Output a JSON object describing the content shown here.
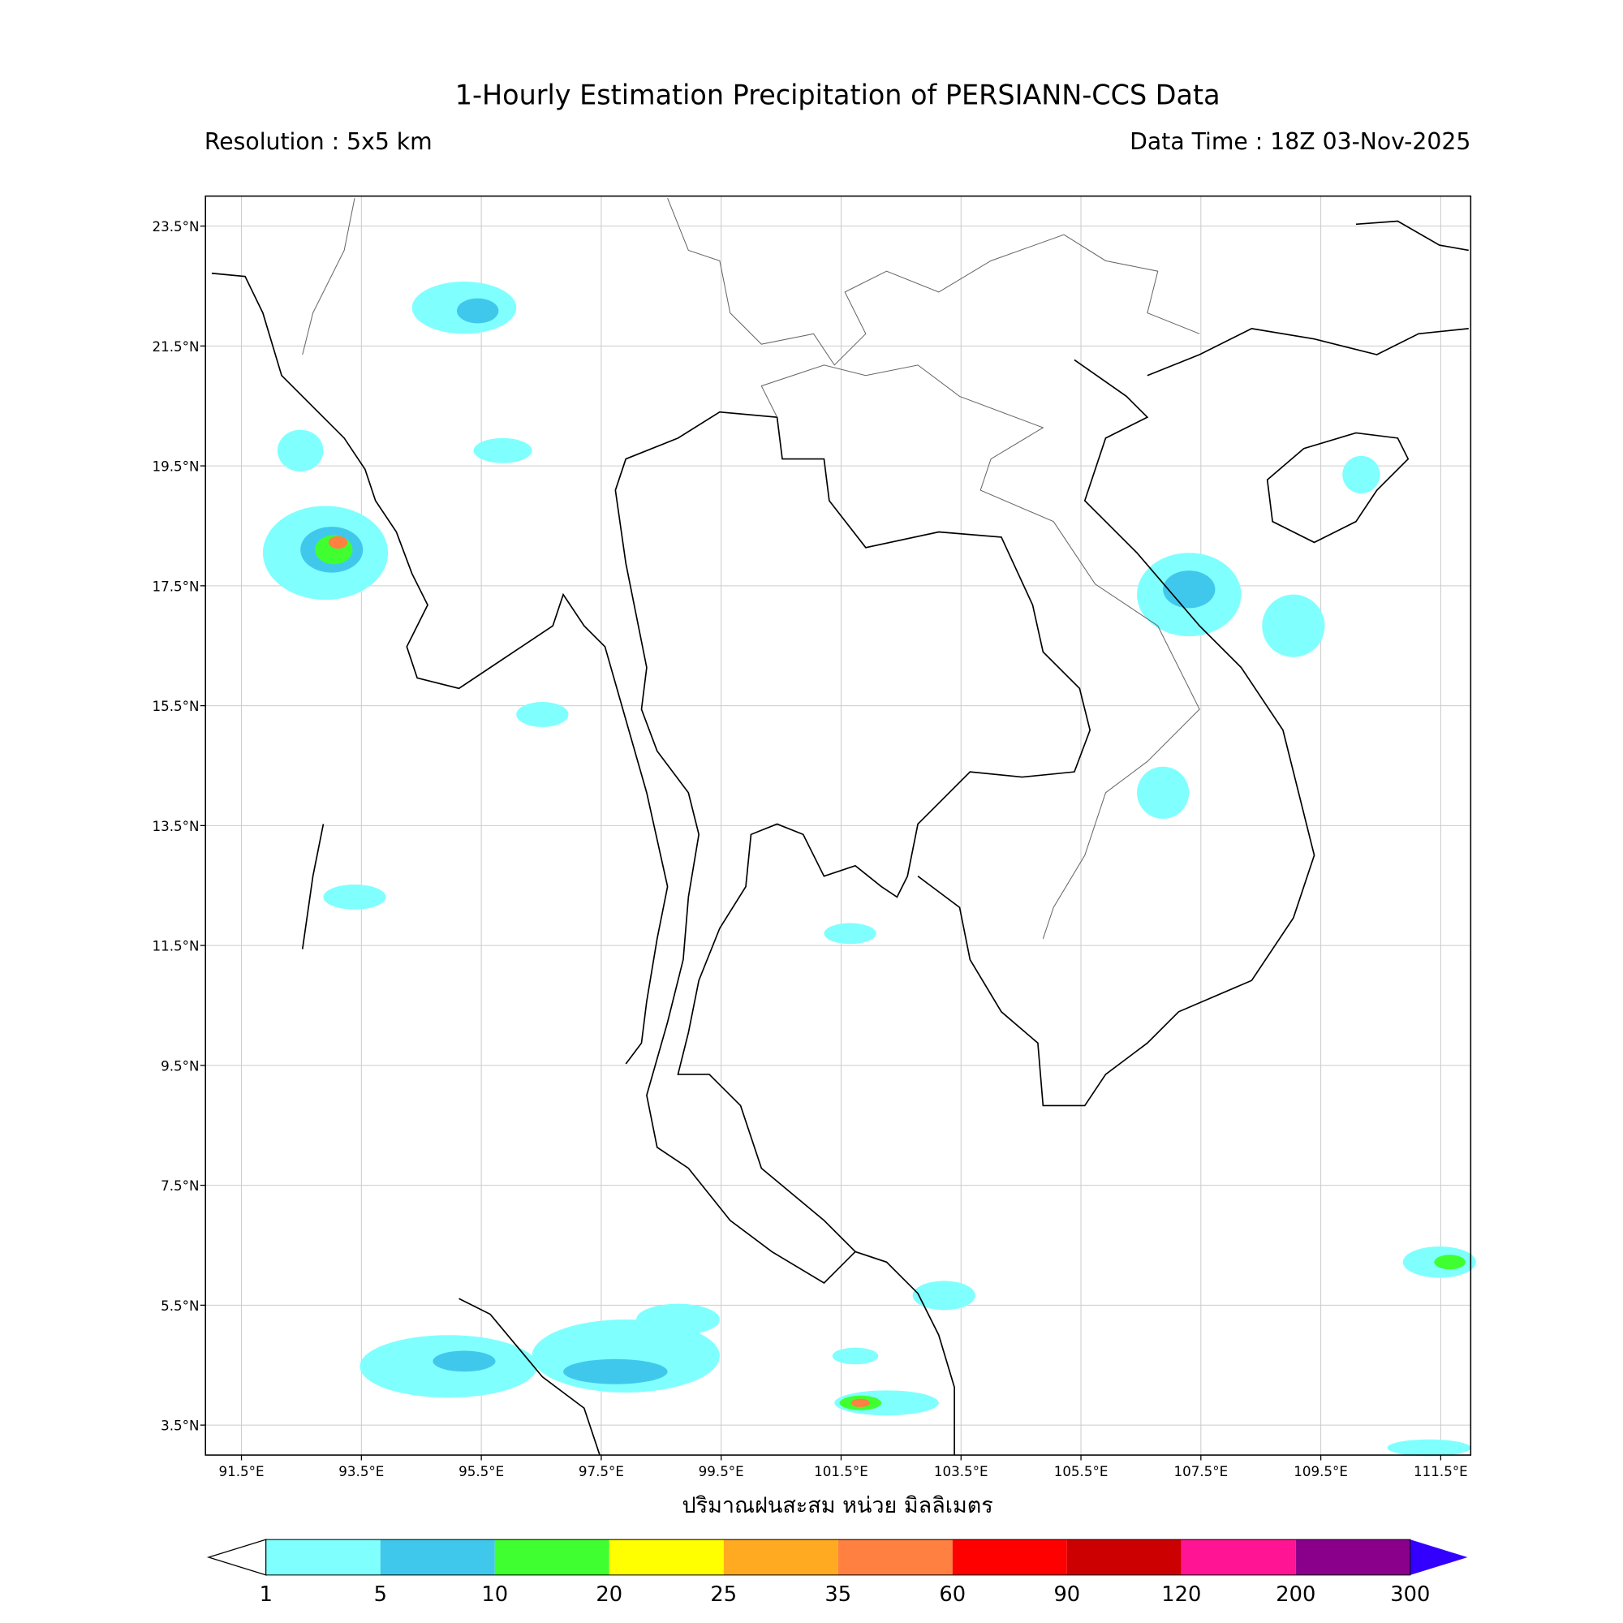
{
  "header": {
    "title": "1-Hourly Estimation Precipitation of PERSIANN-CCS Data",
    "resolution": "Resolution : 5x5 km",
    "data_time": "Data Time : 18Z 03-Nov-2025"
  },
  "map": {
    "lonlim": [
      90.9,
      112
    ],
    "latlim": [
      3,
      24
    ],
    "lon_ticks": [
      {
        "value": 91.5,
        "label": "91.5°E"
      },
      {
        "value": 93.5,
        "label": "93.5°E"
      },
      {
        "value": 95.5,
        "label": "95.5°E"
      },
      {
        "value": 97.5,
        "label": "97.5°E"
      },
      {
        "value": 99.5,
        "label": "99.5°E"
      },
      {
        "value": 101.5,
        "label": "101.5°E"
      },
      {
        "value": 103.5,
        "label": "103.5°E"
      },
      {
        "value": 105.5,
        "label": "105.5°E"
      },
      {
        "value": 107.5,
        "label": "107.5°E"
      },
      {
        "value": 109.5,
        "label": "109.5°E"
      },
      {
        "value": 111.5,
        "label": "111.5°E"
      }
    ],
    "lat_ticks": [
      {
        "value": 23.5,
        "label": "23.5°N"
      },
      {
        "value": 21.5,
        "label": "21.5°N"
      },
      {
        "value": 19.5,
        "label": "19.5°N"
      },
      {
        "value": 17.5,
        "label": "17.5°N"
      },
      {
        "value": 15.5,
        "label": "15.5°N"
      },
      {
        "value": 13.5,
        "label": "13.5°N"
      },
      {
        "value": 11.5,
        "label": "11.5°N"
      },
      {
        "value": 9.5,
        "label": "9.5°N"
      },
      {
        "value": 7.5,
        "label": "7.5°N"
      },
      {
        "value": 5.5,
        "label": "5.5°N"
      },
      {
        "value": 3.5,
        "label": "3.5°N"
      }
    ],
    "xlabel": "ปริมาณฝนสะสม หน่วย มิลลิเมตร",
    "grid": true
  },
  "colorbar": {
    "levels": [
      1,
      5,
      10,
      20,
      25,
      35,
      60,
      90,
      120,
      200,
      300
    ],
    "colors": [
      "#80ffff",
      "#40c8ec",
      "#40ff30",
      "#ffff00",
      "#ffaa20",
      "#ff8040",
      "#ff0000",
      "#cc0000",
      "#ff1493",
      "#8b008b"
    ],
    "under_color": "#ffffff",
    "over_color": "#3300ff"
  }
}
